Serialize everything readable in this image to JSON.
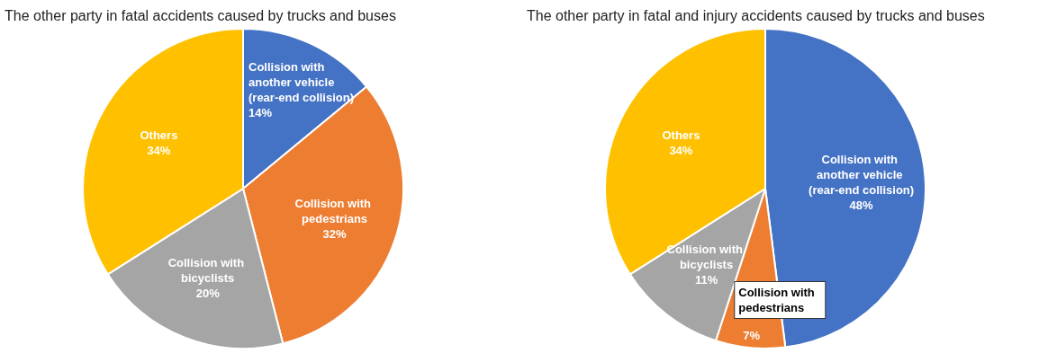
{
  "chart_data": [
    {
      "type": "pie",
      "title": "The other party in fatal accidents caused by trucks and buses",
      "categories": [
        "Collision with another vehicle (rear-end collision)",
        "Collision with pedestrians",
        "Collision with bicyclists",
        "Others"
      ],
      "values": [
        14,
        32,
        20,
        34
      ],
      "value_labels": [
        "14%",
        "32%",
        "20%",
        "34%"
      ],
      "colors": [
        "#4472c4",
        "#ed7d31",
        "#a5a5a5",
        "#ffc000"
      ]
    },
    {
      "type": "pie",
      "title": "The other party in fatal and injury accidents caused by trucks and buses",
      "categories": [
        "Collision with another vehicle (rear-end collision)",
        "Collision with pedestrians",
        "Collision with bicyclists",
        "Others"
      ],
      "values": [
        48,
        7,
        11,
        34
      ],
      "value_labels": [
        "48%",
        "7%",
        "11%",
        "34%"
      ],
      "colors": [
        "#4472c4",
        "#ed7d31",
        "#a5a5a5",
        "#ffc000"
      ]
    }
  ]
}
